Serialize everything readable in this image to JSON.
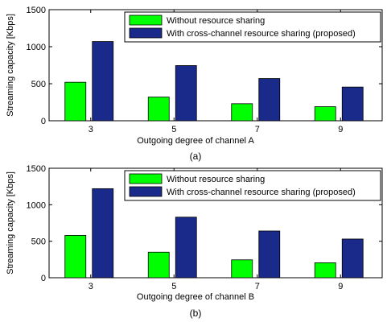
{
  "chart_data": [
    {
      "type": "bar",
      "categories": [
        "3",
        "5",
        "7",
        "9"
      ],
      "series": [
        {
          "name": "Without resource sharing",
          "values": [
            520,
            320,
            230,
            190
          ],
          "color": "#00ff00"
        },
        {
          "name": "With cross-channel resource sharing (proposed)",
          "values": [
            1070,
            745,
            570,
            455
          ],
          "color": "#1a2a8a"
        }
      ],
      "xlabel": "Outgoing degree of channel A",
      "ylabel": "Streaming capacity [Kbps]",
      "ylim": [
        0,
        1500
      ],
      "yticks": [
        "0",
        "500",
        "1000",
        "1500"
      ],
      "caption": "(a)",
      "legend_position": "top-right",
      "grid": false
    },
    {
      "type": "bar",
      "categories": [
        "3",
        "5",
        "7",
        "9"
      ],
      "series": [
        {
          "name": "Without resource sharing",
          "values": [
            580,
            350,
            245,
            205
          ],
          "color": "#00ff00"
        },
        {
          "name": "With cross-channel resource sharing (proposed)",
          "values": [
            1220,
            830,
            640,
            530
          ],
          "color": "#1a2a8a"
        }
      ],
      "xlabel": "Outgoing degree of channel B",
      "ylabel": "Streaming capacity [Kbps]",
      "ylim": [
        0,
        1500
      ],
      "yticks": [
        "0",
        "500",
        "1000",
        "1500"
      ],
      "caption": "(b)",
      "legend_position": "top-right",
      "grid": false
    }
  ]
}
